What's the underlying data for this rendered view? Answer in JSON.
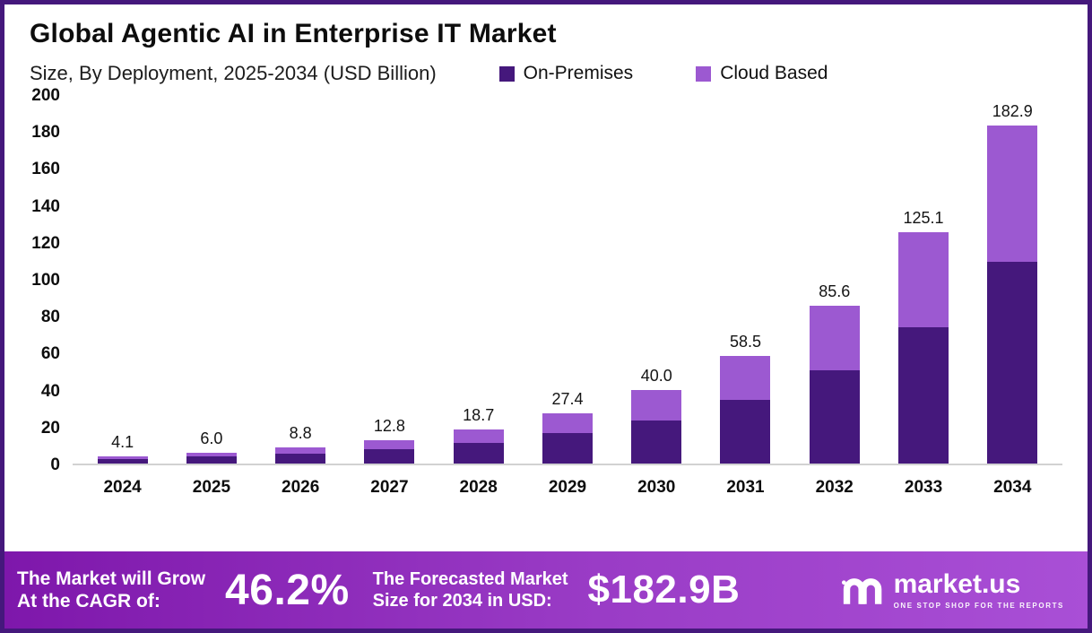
{
  "header": {
    "title": "Global Agentic AI in Enterprise IT Market",
    "subtitle": "Size, By Deployment, 2025-2034 (USD Billion)"
  },
  "legend": [
    {
      "label": "On-Premises",
      "color": "#45187c"
    },
    {
      "label": "Cloud Based",
      "color": "#9c59d1"
    }
  ],
  "chart_data": {
    "type": "bar",
    "stacked": true,
    "title": "Global Agentic AI in Enterprise IT Market Size, By Deployment, 2025-2034 (USD Billion)",
    "categories": [
      "2024",
      "2025",
      "2026",
      "2027",
      "2028",
      "2029",
      "2030",
      "2031",
      "2032",
      "2033",
      "2034"
    ],
    "series": [
      {
        "name": "On-Premises",
        "color": "#45187c",
        "values": [
          2.5,
          3.7,
          5.4,
          7.8,
          11.2,
          16.4,
          23.4,
          34.4,
          50.6,
          74.0,
          109.0
        ]
      },
      {
        "name": "Cloud Based",
        "color": "#9c59d1",
        "values": [
          1.6,
          2.3,
          3.4,
          5.0,
          7.5,
          11.0,
          16.6,
          24.1,
          35.0,
          51.1,
          73.9
        ]
      }
    ],
    "totals": [
      "4.1",
      "6.0",
      "8.8",
      "12.8",
      "18.7",
      "27.4",
      "40.0",
      "58.5",
      "85.6",
      "125.1",
      "182.9"
    ],
    "xlabel": "",
    "ylabel": "",
    "ylim": [
      0,
      200
    ],
    "yticks": [
      0,
      20,
      40,
      60,
      80,
      100,
      120,
      140,
      160,
      180,
      200
    ],
    "grid": false,
    "legend_position": "top-right"
  },
  "footer": {
    "cagr_label_line1": "The Market will Grow",
    "cagr_label_line2": "At the CAGR of:",
    "cagr_value": "46.2%",
    "forecast_label_line1": "The Forecasted Market",
    "forecast_label_line2": "Size for 2034 in USD:",
    "forecast_value": "$182.9B",
    "brand": "market.us",
    "brand_tagline": "ONE STOP SHOP FOR THE REPORTS"
  }
}
